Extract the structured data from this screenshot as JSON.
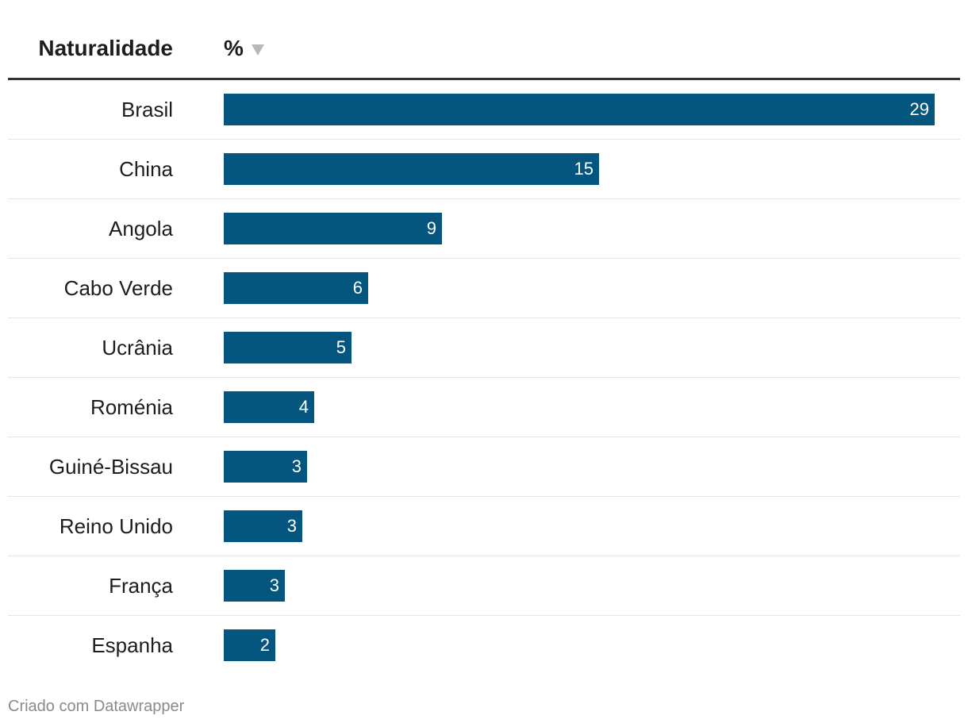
{
  "chart_data": {
    "type": "bar",
    "column_headers": {
      "category": "Naturalidade",
      "value": "%"
    },
    "categories": [
      "Brasil",
      "China",
      "Angola",
      "Cabo Verde",
      "Ucrânia",
      "Roménia",
      "Guiné-Bissau",
      "Reino Unido",
      "França",
      "Espanha"
    ],
    "values": [
      29,
      15,
      9,
      6,
      5,
      4,
      3,
      3,
      3,
      2
    ],
    "bar_values": [
      29,
      15.3,
      8.9,
      5.9,
      5.2,
      3.7,
      3.4,
      3.2,
      2.5,
      2.1
    ],
    "labels": [
      "29",
      "15",
      "9",
      "6",
      "5",
      "4",
      "3",
      "3",
      "3",
      "2"
    ],
    "xlim": [
      0,
      29
    ],
    "bar_color": "#05567f",
    "sort": "descending"
  },
  "footer": {
    "credit": "Criado com Datawrapper"
  },
  "icons": {
    "sort": "sort-descending-icon"
  }
}
